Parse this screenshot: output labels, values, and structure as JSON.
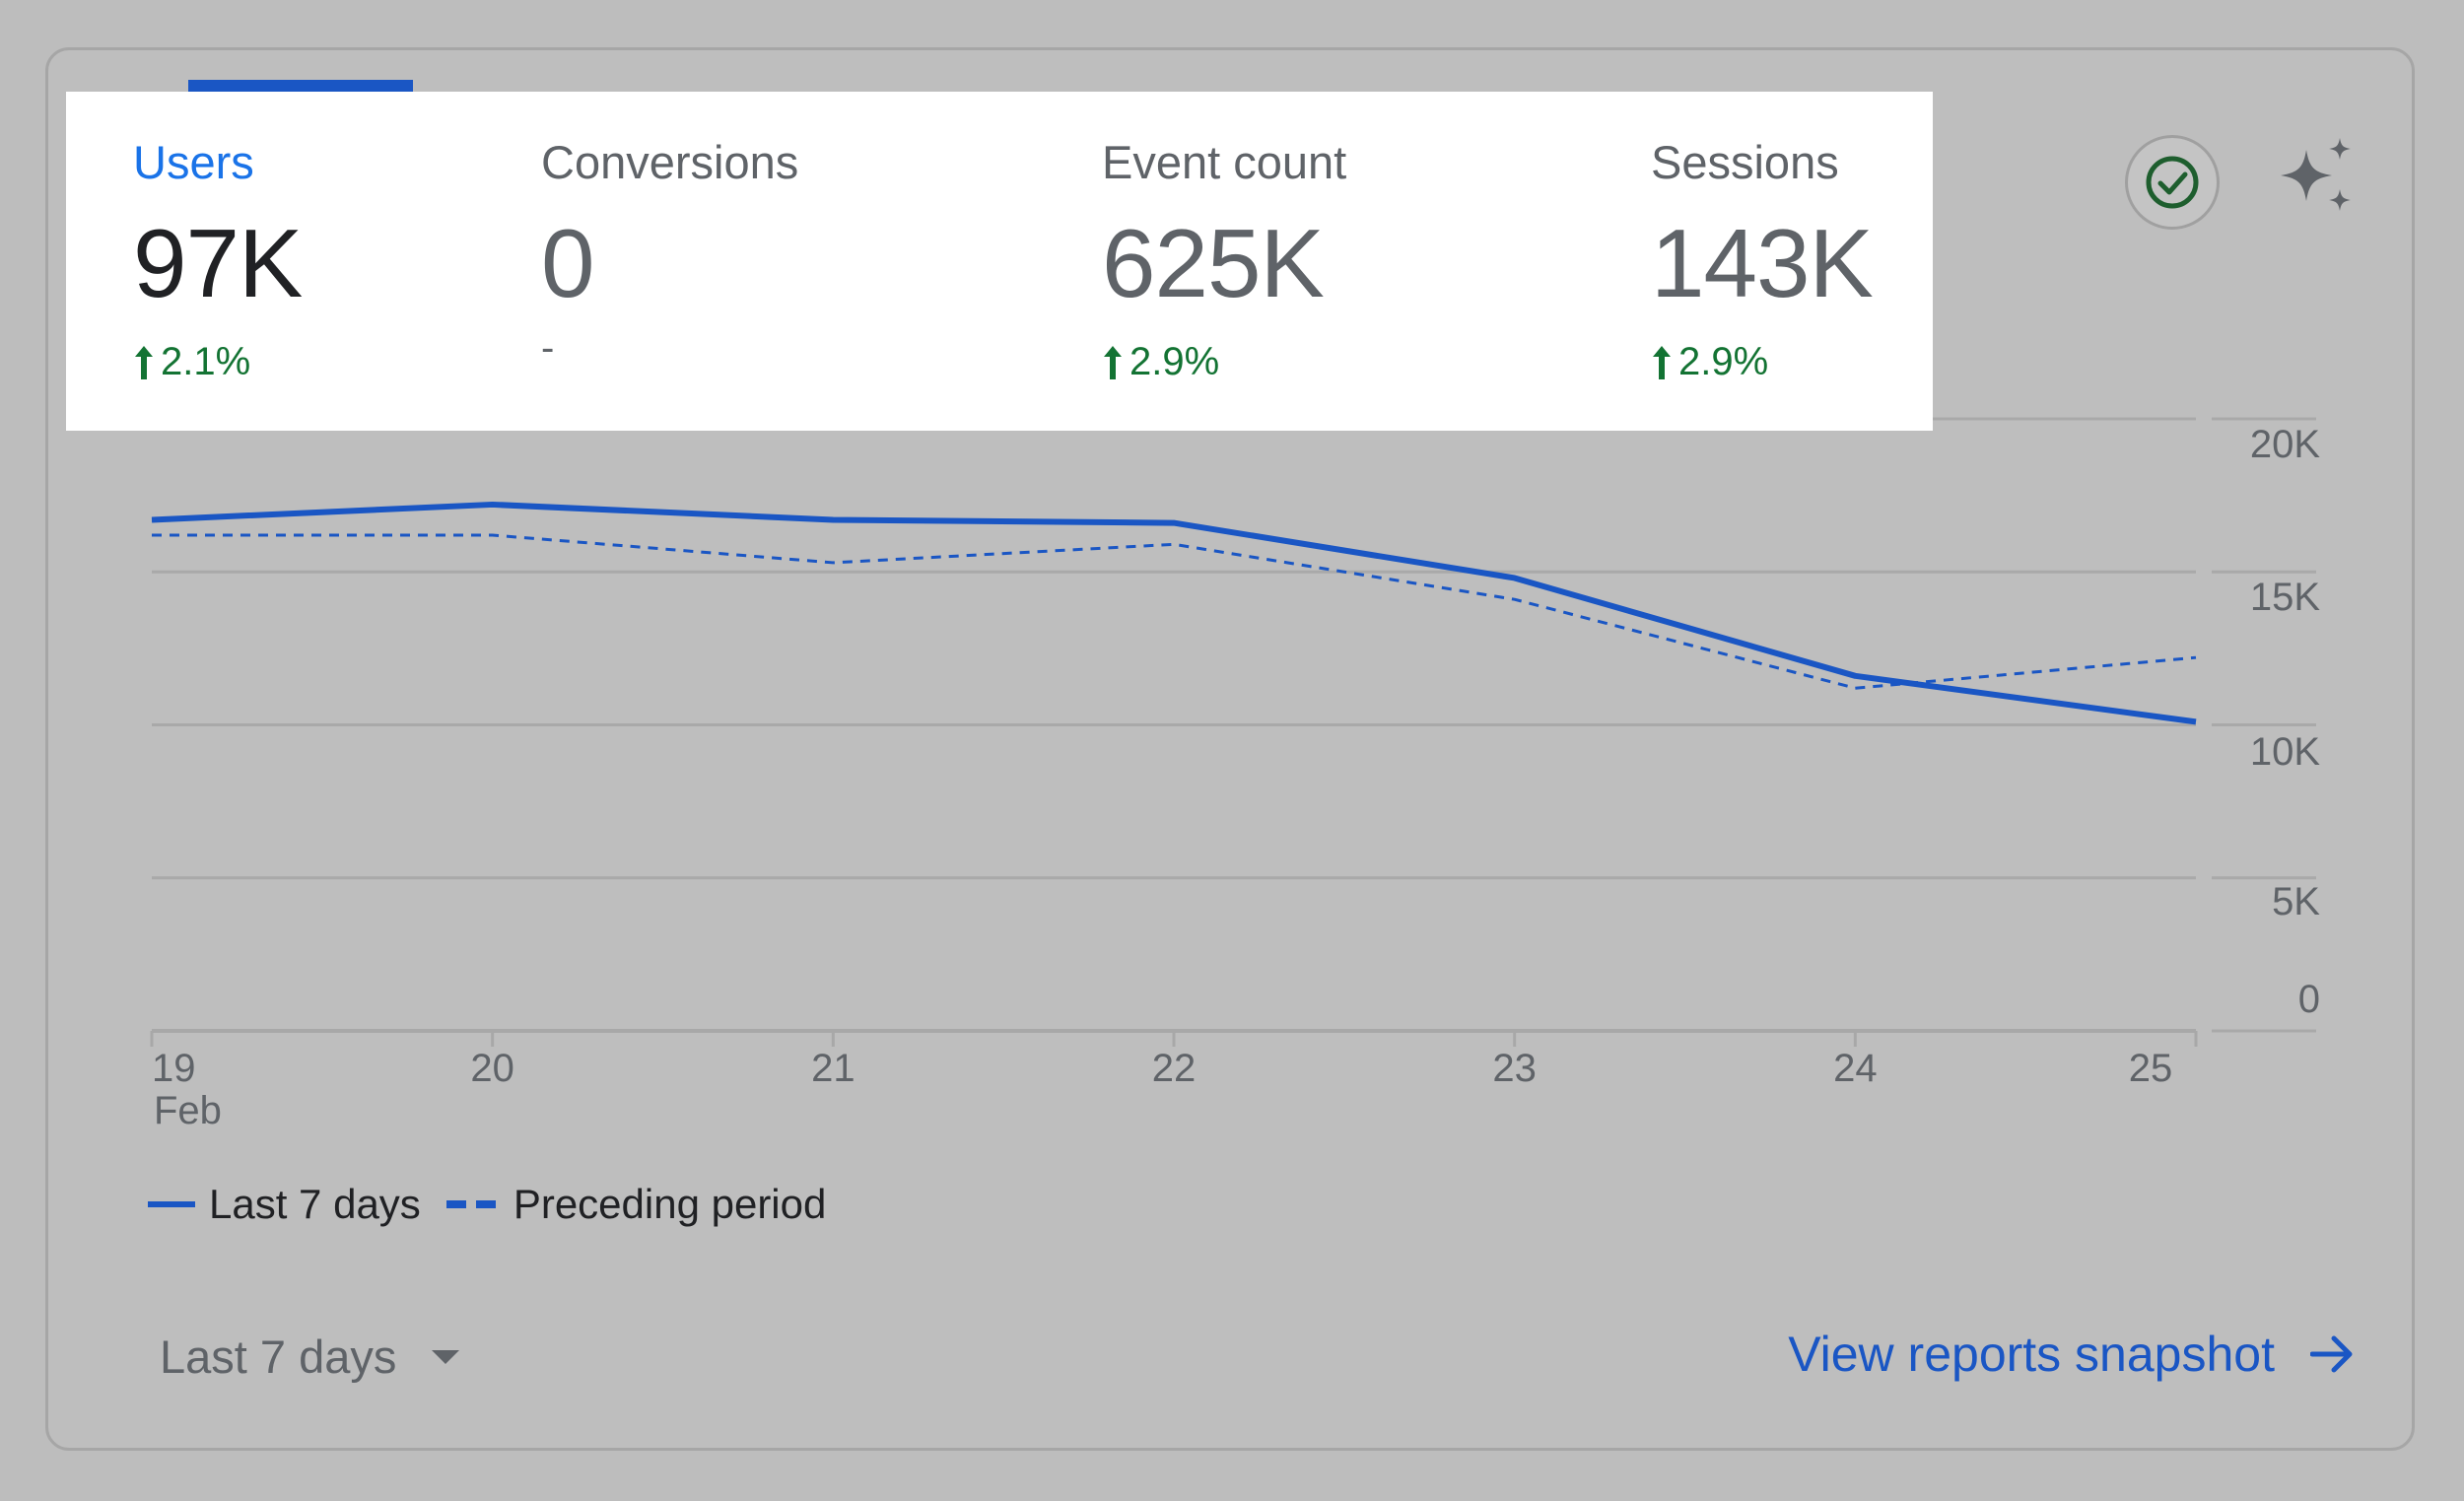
{
  "metrics": [
    {
      "label": "Users",
      "value": "97K",
      "change": "2.1%",
      "trend": "up",
      "active": true
    },
    {
      "label": "Conversions",
      "value": "0",
      "change": "-",
      "trend": "none",
      "active": false
    },
    {
      "label": "Event count",
      "value": "625K",
      "change": "2.9%",
      "trend": "up",
      "active": false
    },
    {
      "label": "Sessions",
      "value": "143K",
      "change": "2.9%",
      "trend": "up",
      "active": false
    }
  ],
  "colors": {
    "accent": "#1a56c4",
    "active_label": "#1a73e8",
    "positive": "#137333",
    "muted_text": "#5f6368"
  },
  "icons": {
    "status": "check-circle-icon",
    "insights": "sparkle-icon",
    "link_arrow": "arrow-right-icon",
    "dropdown": "caret-down-icon"
  },
  "chart_data": {
    "type": "line",
    "x": [
      "19",
      "20",
      "21",
      "22",
      "23",
      "24",
      "25"
    ],
    "x_sublabel": "Feb",
    "y_ticks": [
      "20K",
      "15K",
      "10K",
      "5K",
      "0"
    ],
    "ylim": [
      0,
      20000
    ],
    "series": [
      {
        "name": "Last 7 days",
        "style": "solid",
        "values": [
          16700,
          17200,
          16700,
          16600,
          14800,
          11600,
          10100
        ]
      },
      {
        "name": "Preceding period",
        "style": "dashed",
        "values": [
          16200,
          16200,
          15300,
          15900,
          14100,
          11200,
          12200
        ]
      }
    ],
    "grid": true,
    "legend_position": "bottom-left"
  },
  "footer": {
    "date_range": "Last 7 days",
    "link_label": "View reports snapshot"
  }
}
